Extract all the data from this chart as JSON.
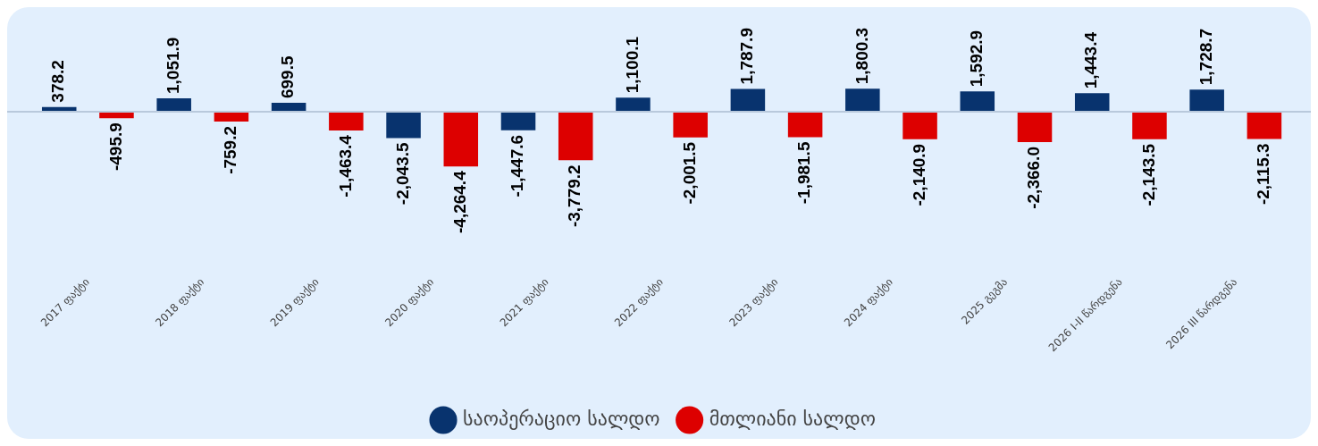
{
  "chart_data": {
    "type": "bar",
    "categories": [
      "2017 ფაქტი",
      "2018 ფაქტი",
      "2019 ფაქტი",
      "2020 ფაქტი",
      "2021 ფაქტი",
      "2022 ფაქტი",
      "2023 ფაქტი",
      "2024 ფაქტი",
      "2025 გეგმა",
      "2026 I-II წარდგენა",
      "2026 III წარდგენა"
    ],
    "series": [
      {
        "name": "საოპერაციო სალდო",
        "color": "#08336e",
        "values": [
          378.2,
          1051.9,
          699.5,
          -2043.5,
          -1447.6,
          1100.1,
          1787.9,
          1800.3,
          1592.9,
          1443.4,
          1728.7
        ],
        "value_labels": [
          "378.2",
          "1,051.9",
          "699.5",
          "-2,043.5",
          "-1,447.6",
          "1,100.1",
          "1,787.9",
          "1,800.3",
          "1,592.9",
          "1,443.4",
          "1,728.7"
        ]
      },
      {
        "name": "მთლიანი სალდო",
        "color": "#dd0000",
        "values": [
          -495.9,
          -759.2,
          -1463.4,
          -4264.4,
          -3779.2,
          -2001.5,
          -1981.5,
          -2140.9,
          -2366.0,
          -2143.5,
          -2115.3
        ],
        "value_labels": [
          "-495.9",
          "-759.2",
          "-1,463.4",
          "-4,264.4",
          "-3,779.2",
          "-2,001.5",
          "-1,981.5",
          "-2,140.9",
          "-2,366.0",
          "-2,143.5",
          "-2,115.3"
        ]
      }
    ],
    "grid": false,
    "legend": "bottom",
    "tick_labels": "x"
  }
}
